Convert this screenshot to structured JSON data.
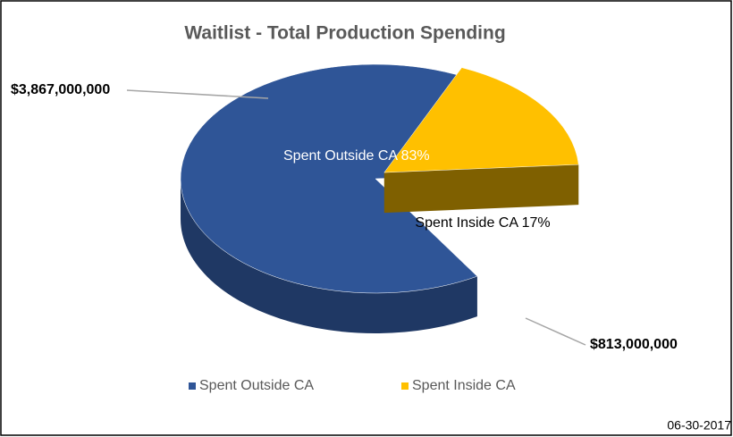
{
  "chart_data": {
    "type": "pie3d",
    "title": "Waitlist - Total Production Spending",
    "categories": [
      "Spent Outside CA",
      "Spent Inside CA"
    ],
    "values": [
      3867000000,
      813000000
    ],
    "value_labels": [
      "$3,867,000,000",
      "$813,000,000"
    ],
    "slice_labels": [
      "Spent Outside CA 83%",
      "Spent Inside CA 17%"
    ],
    "colors": [
      "#2f5597",
      "#ffc000"
    ],
    "side_colors": [
      "#1f3864",
      "#7f6000"
    ],
    "footnote": "06-30-2017"
  }
}
